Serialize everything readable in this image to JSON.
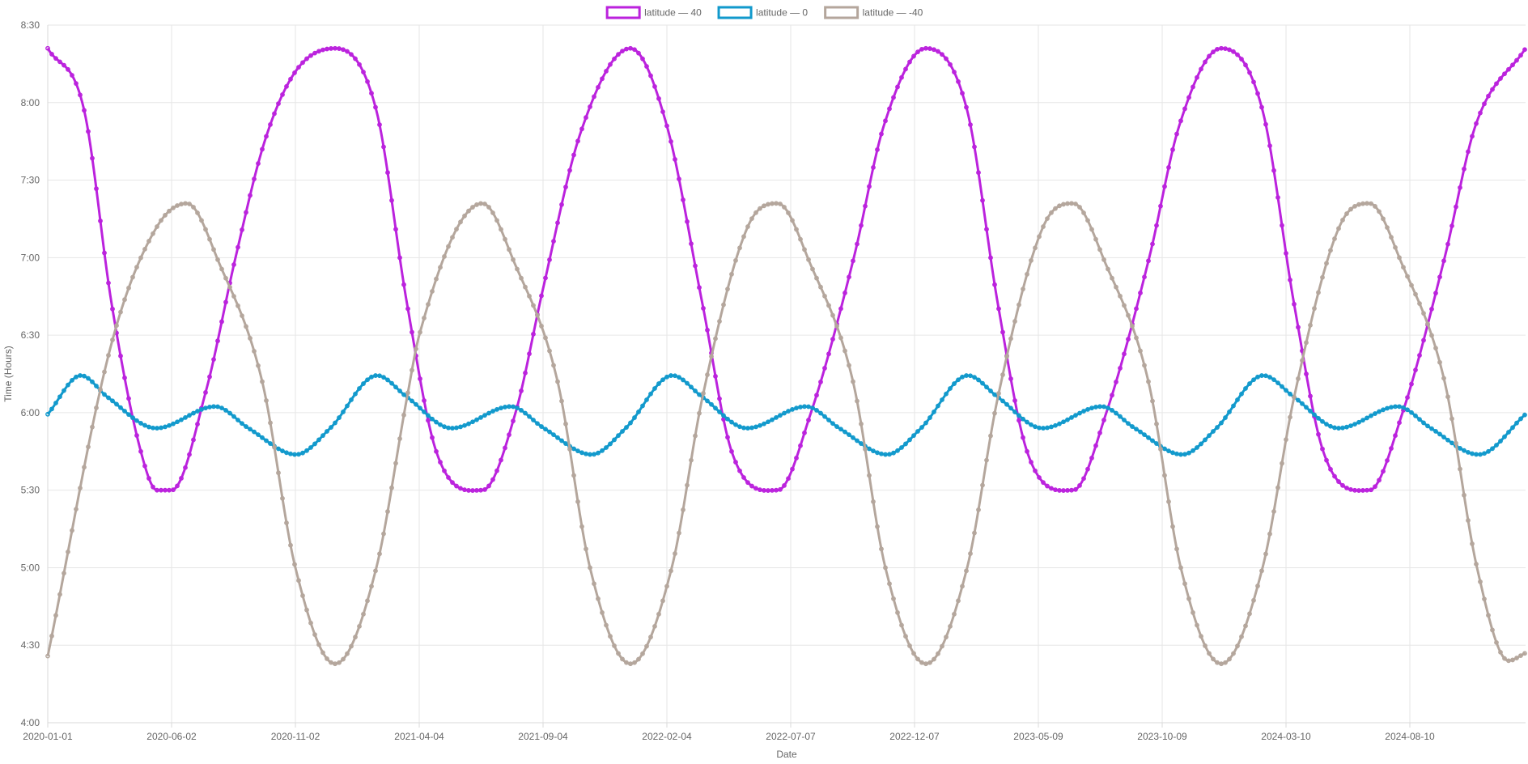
{
  "chart_data": {
    "type": "line",
    "xlabel": "Date",
    "ylabel": "Time (Hours)",
    "x_tick_labels": [
      "2020-01-01",
      "2020-06-02",
      "2020-11-02",
      "2021-04-04",
      "2021-09-04",
      "2022-02-04",
      "2022-07-07",
      "2022-12-07",
      "2023-05-09",
      "2023-10-09",
      "2024-03-10",
      "2024-08-10"
    ],
    "y_tick_labels": [
      "4:00",
      "4:30",
      "5:00",
      "5:30",
      "6:00",
      "6:30",
      "7:00",
      "7:30",
      "8:00",
      "8:30"
    ],
    "x_range": [
      "2020-01-01",
      "2024-12-31"
    ],
    "ylim_hours": [
      4.0,
      8.5
    ],
    "grid": true,
    "legend_position": "top-center",
    "series": [
      {
        "name": "latitude — 40",
        "color": "#bb22dd",
        "points": [
          [
            "2020-01-01",
            8.35
          ],
          [
            "2020-02-15",
            7.95
          ],
          [
            "2020-03-20",
            6.7
          ],
          [
            "2020-04-25",
            5.75
          ],
          [
            "2020-05-15",
            5.5
          ],
          [
            "2020-06-02",
            5.5
          ],
          [
            "2020-07-15",
            6.15
          ],
          [
            "2020-08-20",
            7.0
          ],
          [
            "2020-09-25",
            7.75
          ],
          [
            "2020-11-02",
            8.2
          ],
          [
            "2020-12-21",
            8.35
          ],
          [
            "2021-02-10",
            7.95
          ],
          [
            "2021-03-20",
            6.7
          ],
          [
            "2021-04-25",
            5.75
          ],
          [
            "2021-06-21",
            5.5
          ],
          [
            "2021-08-01",
            6.0
          ],
          [
            "2021-09-04",
            6.8
          ],
          [
            "2021-10-20",
            7.8
          ],
          [
            "2021-12-21",
            8.35
          ],
          [
            "2022-02-04",
            7.85
          ],
          [
            "2022-03-20",
            6.7
          ],
          [
            "2022-04-25",
            5.75
          ],
          [
            "2022-06-21",
            5.5
          ],
          [
            "2022-08-01",
            6.0
          ],
          [
            "2022-09-23",
            7.0
          ],
          [
            "2022-10-30",
            7.85
          ],
          [
            "2022-12-21",
            8.35
          ],
          [
            "2023-02-10",
            7.95
          ],
          [
            "2023-03-20",
            6.7
          ],
          [
            "2023-04-25",
            5.75
          ],
          [
            "2023-06-21",
            5.5
          ],
          [
            "2023-08-01",
            6.0
          ],
          [
            "2023-09-23",
            7.0
          ],
          [
            "2023-10-30",
            7.85
          ],
          [
            "2023-12-21",
            8.35
          ],
          [
            "2024-02-10",
            7.95
          ],
          [
            "2024-03-20",
            6.7
          ],
          [
            "2024-04-25",
            5.75
          ],
          [
            "2024-06-21",
            5.5
          ],
          [
            "2024-08-01",
            6.0
          ],
          [
            "2024-09-22",
            7.0
          ],
          [
            "2024-10-30",
            7.85
          ],
          [
            "2024-12-31",
            8.35
          ]
        ]
      },
      {
        "name": "latitude — 0",
        "color": "#1199cc",
        "points": [
          [
            "2020-01-01",
            5.99
          ],
          [
            "2020-02-11",
            6.24
          ],
          [
            "2020-03-15",
            6.1
          ],
          [
            "2020-05-14",
            5.9
          ],
          [
            "2020-07-26",
            6.04
          ],
          [
            "2020-09-05",
            5.9
          ],
          [
            "2020-11-03",
            5.73
          ],
          [
            "2020-12-15",
            5.9
          ],
          [
            "2021-02-11",
            6.24
          ],
          [
            "2021-03-20",
            6.1
          ],
          [
            "2021-05-14",
            5.9
          ],
          [
            "2021-07-26",
            6.04
          ],
          [
            "2021-09-05",
            5.9
          ],
          [
            "2021-11-03",
            5.73
          ],
          [
            "2021-12-15",
            5.9
          ],
          [
            "2022-02-11",
            6.24
          ],
          [
            "2022-03-20",
            6.1
          ],
          [
            "2022-05-14",
            5.9
          ],
          [
            "2022-07-26",
            6.04
          ],
          [
            "2022-09-05",
            5.9
          ],
          [
            "2022-11-03",
            5.73
          ],
          [
            "2022-12-15",
            5.9
          ],
          [
            "2023-02-11",
            6.24
          ],
          [
            "2023-03-20",
            6.1
          ],
          [
            "2023-05-14",
            5.9
          ],
          [
            "2023-07-26",
            6.04
          ],
          [
            "2023-09-05",
            5.9
          ],
          [
            "2023-11-03",
            5.73
          ],
          [
            "2023-12-15",
            5.9
          ],
          [
            "2024-02-11",
            6.24
          ],
          [
            "2024-03-20",
            6.1
          ],
          [
            "2024-05-14",
            5.9
          ],
          [
            "2024-07-26",
            6.04
          ],
          [
            "2024-09-05",
            5.9
          ],
          [
            "2024-11-03",
            5.73
          ],
          [
            "2024-12-31",
            5.99
          ]
        ]
      },
      {
        "name": "latitude — -40",
        "color": "#b4a69c",
        "points": [
          [
            "2020-01-01",
            4.43
          ],
          [
            "2020-03-20",
            6.45
          ],
          [
            "2020-05-15",
            7.2
          ],
          [
            "2020-06-21",
            7.35
          ],
          [
            "2020-08-01",
            6.95
          ],
          [
            "2020-09-22",
            6.2
          ],
          [
            "2020-11-02",
            5.0
          ],
          [
            "2020-12-21",
            4.38
          ],
          [
            "2021-02-10",
            5.0
          ],
          [
            "2021-03-20",
            6.1
          ],
          [
            "2021-04-04",
            6.5
          ],
          [
            "2021-06-21",
            7.35
          ],
          [
            "2021-08-01",
            6.95
          ],
          [
            "2021-09-22",
            6.2
          ],
          [
            "2021-11-01",
            5.0
          ],
          [
            "2021-12-21",
            4.38
          ],
          [
            "2022-02-10",
            5.0
          ],
          [
            "2022-03-20",
            6.1
          ],
          [
            "2022-05-15",
            7.2
          ],
          [
            "2022-06-21",
            7.35
          ],
          [
            "2022-08-01",
            6.95
          ],
          [
            "2022-09-22",
            6.2
          ],
          [
            "2022-11-01",
            5.0
          ],
          [
            "2022-12-21",
            4.38
          ],
          [
            "2023-02-10",
            5.0
          ],
          [
            "2023-03-20",
            6.1
          ],
          [
            "2023-05-15",
            7.2
          ],
          [
            "2023-06-21",
            7.35
          ],
          [
            "2023-08-01",
            6.95
          ],
          [
            "2023-09-22",
            6.2
          ],
          [
            "2023-11-01",
            5.0
          ],
          [
            "2023-12-21",
            4.38
          ],
          [
            "2024-02-10",
            5.0
          ],
          [
            "2024-03-20",
            6.1
          ],
          [
            "2024-05-15",
            7.2
          ],
          [
            "2024-06-21",
            7.35
          ],
          [
            "2024-08-01",
            6.95
          ],
          [
            "2024-09-22",
            6.2
          ],
          [
            "2024-11-01",
            5.0
          ],
          [
            "2024-12-10",
            4.4
          ],
          [
            "2024-12-31",
            4.45
          ]
        ]
      }
    ]
  }
}
